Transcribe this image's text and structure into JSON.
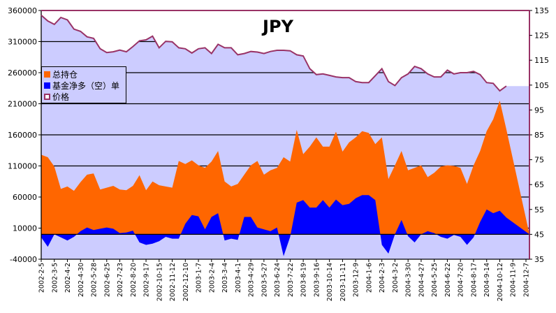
{
  "chart_data": {
    "type": "area",
    "title": "JPY",
    "xlabel": "",
    "ylabel_left": "",
    "ylabel_right": "",
    "left_axis": {
      "ylim": [
        -40000,
        360000
      ],
      "ticks": [
        "360000",
        "310000",
        "260000",
        "210000",
        "160000",
        "110000",
        "60000",
        "10000",
        "-40000"
      ]
    },
    "right_axis": {
      "ylim": [
        35,
        135
      ],
      "ticks": [
        "135",
        "125",
        "115",
        "105",
        "95",
        "85",
        "75",
        "65",
        "55",
        "45",
        "35"
      ]
    },
    "x_ticks": [
      "2002-2-5",
      "2002-3-5",
      "2002-4-2",
      "2002-4-30",
      "2002-5-28",
      "2002-6-25",
      "2002-7-23",
      "2002-8-20",
      "2002-9-17",
      "2002-10-15",
      "2002-11-12",
      "2002-12-10",
      "2003-1-7",
      "2003-2-4",
      "2003-3-4",
      "2003-4-1",
      "2003-4-29",
      "2003-5-27",
      "2003-6-24",
      "2003-7-22",
      "2003-8-19",
      "2003-9-16",
      "2003-10-14",
      "2003-11-11",
      "2003-12-9",
      "2004-1-6",
      "2004-2-3",
      "2004-3-2",
      "2004-3-30",
      "2004-4-27",
      "2004-5-25",
      "2004-6-22",
      "2004-7-20",
      "2004-8-17",
      "2004-9-14",
      "2004-10-12",
      "2004-11-9",
      "2004-12-7"
    ],
    "points_per_tick": 2,
    "grid": true,
    "legend_position": "left",
    "colors": {
      "total": "#FF6600",
      "net": "#0000FF",
      "price_fill": "#CCCCFF",
      "price_line": "#993366"
    },
    "series": [
      {
        "name": "总持仓",
        "axis": "left",
        "values": [
          128000,
          124000,
          109000,
          73000,
          77000,
          70000,
          84000,
          96000,
          98000,
          72000,
          75000,
          78000,
          72000,
          71000,
          78000,
          95000,
          71000,
          85000,
          79000,
          77000,
          75000,
          118000,
          113000,
          119000,
          111000,
          107000,
          117000,
          134000,
          85000,
          77000,
          81000,
          96000,
          111000,
          118000,
          96000,
          103000,
          107000,
          124000,
          117000,
          168000,
          129000,
          141000,
          156000,
          141000,
          141000,
          165000,
          133000,
          148000,
          156000,
          166000,
          163000,
          145000,
          156000,
          89000,
          111000,
          134000,
          103000,
          107000,
          111000,
          92000,
          99000,
          109000,
          111000,
          110000,
          107000,
          81000,
          111000,
          134000,
          166000,
          185000,
          215000,
          169000
        ]
      },
      {
        "name": "基金净多（空）单",
        "axis": "left",
        "values": [
          -5000,
          -20000,
          0,
          -5000,
          -10000,
          -4000,
          5000,
          11000,
          7000,
          9000,
          11000,
          9000,
          2000,
          3000,
          6000,
          -13000,
          -17000,
          -15000,
          -11000,
          -4000,
          -7000,
          -7000,
          17000,
          31000,
          29000,
          8000,
          28000,
          34000,
          -10000,
          -7000,
          -9000,
          28000,
          28000,
          11000,
          8000,
          5000,
          11000,
          -35000,
          -4000,
          51000,
          55000,
          43000,
          43000,
          55000,
          43000,
          56000,
          47000,
          49000,
          58000,
          63000,
          63000,
          55000,
          -17000,
          -31000,
          0,
          23000,
          -3000,
          -13000,
          0,
          5000,
          2000,
          -4000,
          -7000,
          -1000,
          -4000,
          -17000,
          -5000,
          20000,
          40000,
          34000,
          38000,
          27000
        ]
      },
      {
        "name": "价格",
        "axis": "right",
        "values": [
          133.1,
          130.8,
          129.4,
          132.2,
          131.2,
          127.5,
          126.6,
          124.4,
          123.8,
          119.6,
          118.1,
          118.4,
          119.1,
          118.4,
          120.5,
          122.8,
          123.2,
          124.7,
          120,
          122.6,
          122.4,
          120,
          119.6,
          117.9,
          119.6,
          120,
          117.7,
          121.4,
          120,
          120,
          117.2,
          117.7,
          118.5,
          118.3,
          117.7,
          118.5,
          119,
          119,
          118.8,
          117.2,
          116.7,
          111.6,
          109.2,
          109.5,
          108.9,
          108.3,
          108,
          108,
          106.4,
          106,
          106,
          108.8,
          111.6,
          106.4,
          104.8,
          108,
          109.5,
          112.5,
          111.6,
          109.5,
          108.3,
          108.3,
          111,
          109.5,
          110,
          110,
          110.5,
          109.2,
          106,
          105.7,
          102.7,
          104.6
        ]
      }
    ]
  }
}
